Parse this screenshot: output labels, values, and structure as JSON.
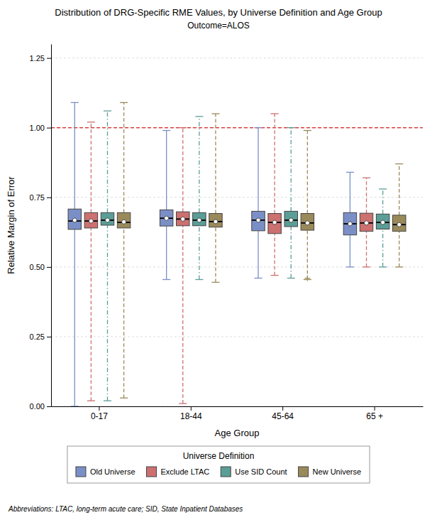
{
  "chart_data": {
    "type": "box",
    "title": "Distribution of DRG-Specific RME Values, by Universe Definition and Age Group",
    "subtitle": "Outcome=ALOS",
    "x_label": "Age Group",
    "y_label": "Relative Margin of Error",
    "categories": [
      "0-17",
      "18-44",
      "45-64",
      "65 +"
    ],
    "legend_title": "Universe Definition",
    "legend": "bottom",
    "grid": true,
    "footnote": "Abbreviations: LTAC, long-term acute care; SID, State Inpatient Databases",
    "ylim": [
      0.0,
      1.3
    ],
    "yticks": [
      {
        "value": 0.0,
        "label": "0.00"
      },
      0.25,
      {
        "value": 0.5,
        "label": "0.50"
      },
      0.75,
      {
        "value": 1.0,
        "label": "1.00"
      },
      1.25
    ],
    "reference_line": {
      "value": 1.0,
      "color": "#D94040",
      "line_style": "dashed"
    },
    "series": [
      {
        "name": "Old Universe",
        "color": "#7B8FC7",
        "line_style": "solid",
        "q1": [
          0.635,
          0.647,
          0.63,
          0.615
        ],
        "median": [
          0.665,
          0.675,
          0.668,
          0.655
        ],
        "q3": [
          0.708,
          0.705,
          0.7,
          0.695
        ],
        "whisker_low": [
          0.0,
          0.455,
          0.46,
          0.5
        ],
        "whisker_high": [
          1.09,
          0.99,
          1.0,
          0.84
        ],
        "mean": [
          0.668,
          0.675,
          0.668,
          0.655
        ]
      },
      {
        "name": "Exclude LTAC",
        "color": "#CC7070",
        "line_style": "dashed",
        "q1": [
          0.64,
          0.648,
          0.62,
          0.628
        ],
        "median": [
          0.665,
          0.672,
          0.66,
          0.658
        ],
        "q3": [
          0.695,
          0.698,
          0.692,
          0.693
        ],
        "whisker_low": [
          0.02,
          0.01,
          0.47,
          0.5
        ],
        "whisker_high": [
          1.02,
          1.0,
          1.05,
          0.82
        ],
        "mean": [
          0.665,
          0.672,
          0.66,
          0.658
        ]
      },
      {
        "name": "Use SID Count",
        "color": "#5A9E96",
        "line_style": "dashdot",
        "q1": [
          0.65,
          0.648,
          0.645,
          0.636
        ],
        "median": [
          0.668,
          0.668,
          0.668,
          0.66
        ],
        "q3": [
          0.695,
          0.695,
          0.7,
          0.69
        ],
        "whisker_low": [
          0.02,
          0.455,
          0.46,
          0.5
        ],
        "whisker_high": [
          1.06,
          1.04,
          1.0,
          0.78
        ],
        "mean": [
          0.668,
          0.668,
          0.668,
          0.66
        ]
      },
      {
        "name": "New Universe",
        "color": "#9A8A5A",
        "line_style": "dashed",
        "q1": [
          0.64,
          0.643,
          0.632,
          0.628
        ],
        "median": [
          0.66,
          0.663,
          0.658,
          0.652
        ],
        "q3": [
          0.695,
          0.692,
          0.692,
          0.686
        ],
        "whisker_low": [
          0.03,
          0.445,
          0.455,
          0.5
        ],
        "whisker_high": [
          1.09,
          1.05,
          0.99,
          0.87
        ],
        "mean": [
          0.662,
          0.663,
          0.658,
          0.652
        ],
        "flier_low": [
          null,
          null,
          0.46,
          null
        ]
      }
    ]
  }
}
